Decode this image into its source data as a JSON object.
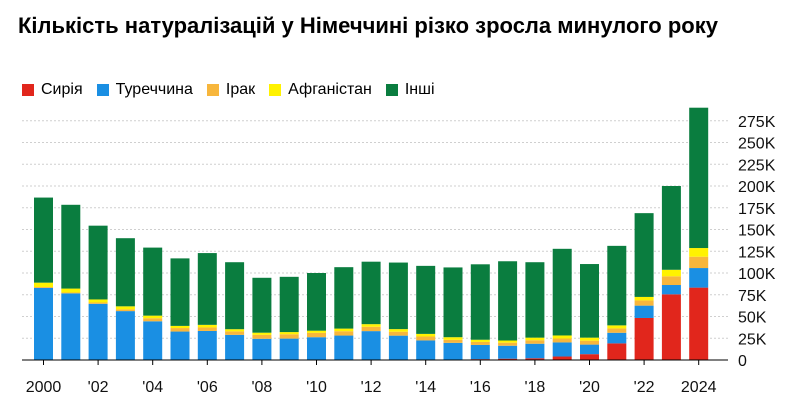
{
  "chart_data": {
    "type": "bar",
    "stacked": true,
    "title": "Кількість натуралізацій у Німеччині різко зросла минулого року",
    "xlabel": "",
    "ylabel": "",
    "categories": [
      "2000",
      "2001",
      "2002",
      "2003",
      "2004",
      "2005",
      "2006",
      "2007",
      "2008",
      "2009",
      "2010",
      "2011",
      "2012",
      "2013",
      "2014",
      "2015",
      "2016",
      "2017",
      "2018",
      "2019",
      "2020",
      "2021",
      "2022",
      "2023",
      "2024"
    ],
    "x_tick_labels": [
      "2000",
      "'02",
      "'04",
      "'06",
      "'08",
      "'10",
      "'12",
      "'14",
      "'16",
      "'18",
      "'20",
      "'22",
      "2024"
    ],
    "y_tick_labels": [
      "0",
      "25K",
      "50K",
      "75K",
      "100K",
      "125K",
      "150K",
      "175K",
      "200K",
      "225K",
      "250K",
      "275K"
    ],
    "ylim": [
      0,
      290000
    ],
    "grid": true,
    "legend_position": "top-left",
    "series": [
      {
        "name": "Сирія",
        "color": "#e1261c",
        "values": [
          0,
          0,
          0,
          0,
          0,
          0,
          0,
          0,
          0,
          0,
          0,
          0,
          0,
          0,
          0,
          0,
          1000,
          1500,
          2000,
          4000,
          6700,
          19100,
          48300,
          75500,
          83200
        ]
      },
      {
        "name": "Туреччина",
        "color": "#1a8fe3",
        "values": [
          82900,
          76600,
          64600,
          56200,
          44500,
          32700,
          33400,
          28900,
          24400,
          24600,
          26200,
          28100,
          33200,
          28000,
          22500,
          19700,
          16300,
          14900,
          16700,
          16200,
          11000,
          12200,
          14200,
          10700,
          22500
        ]
      },
      {
        "name": "Ірак",
        "color": "#f7b63c",
        "values": [
          1000,
          1000,
          1500,
          2000,
          3500,
          4000,
          4000,
          4000,
          4500,
          5000,
          5000,
          5000,
          5000,
          4500,
          4500,
          3500,
          3500,
          3500,
          4000,
          4500,
          4500,
          5000,
          6000,
          10000,
          13000
        ]
      },
      {
        "name": "Афганістан",
        "color": "#fff200",
        "values": [
          5000,
          4500,
          3500,
          3500,
          3000,
          2500,
          3000,
          2500,
          2500,
          2500,
          2500,
          3000,
          3000,
          3000,
          3000,
          3000,
          2500,
          2500,
          3000,
          3500,
          3500,
          3500,
          4000,
          7500,
          10000
        ]
      },
      {
        "name": "Інші",
        "color": "#0a7d3f",
        "values": [
          97800,
          96300,
          84800,
          78300,
          78200,
          77600,
          82500,
          77000,
          63100,
          63500,
          66300,
          70600,
          71800,
          76500,
          78200,
          80200,
          86700,
          91100,
          86700,
          99600,
          84600,
          91400,
          96300,
          96300,
          161300
        ]
      }
    ]
  }
}
